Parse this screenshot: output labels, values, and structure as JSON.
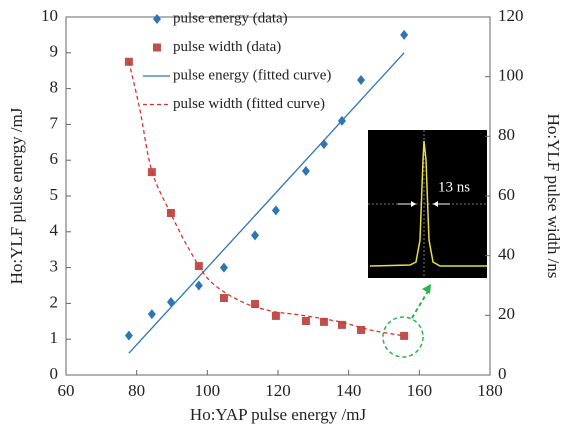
{
  "chart_data": {
    "type": "scatter",
    "xlabel": "Ho:YAP pulse energy /mJ",
    "ylabel": "Ho:YLF pulse energy /mJ",
    "y2label": "Ho:YLF pulse width /ns",
    "xlim": [
      60,
      180
    ],
    "xticks": [
      60,
      80,
      100,
      120,
      140,
      160,
      180
    ],
    "ylim": [
      0,
      10
    ],
    "yticks": [
      0,
      1,
      2,
      3,
      4,
      5,
      6,
      7,
      8,
      9,
      10
    ],
    "y2lim": [
      0,
      120
    ],
    "y2ticks": [
      0,
      20,
      40,
      60,
      80,
      100,
      120
    ],
    "legend": "upper left",
    "annotation": "13 ns",
    "series": [
      {
        "name": "pulse energy (data)",
        "color": "#2e75b6",
        "mode": "markers",
        "marker": "diamond",
        "x": [
          77.8,
          84.3,
          89.7,
          97.6,
          104.7,
          113.5,
          119.4,
          127.9,
          133,
          138.1,
          143.5,
          155.7
        ],
        "values": [
          1.1,
          1.7,
          2.04,
          2.5,
          3.0,
          3.9,
          4.6,
          5.7,
          6.45,
          7.1,
          8.24,
          9.5
        ]
      },
      {
        "name": "pulse width (data)",
        "color": "#c0504d",
        "mode": "markers",
        "marker": "square",
        "axis": "y2",
        "x": [
          77.8,
          84.3,
          89.7,
          97.6,
          104.7,
          113.5,
          119.4,
          127.9,
          133,
          138.1,
          143.5,
          155.7
        ],
        "values": [
          105,
          68,
          54.3,
          36.5,
          25.8,
          23.8,
          19.8,
          18.1,
          17.8,
          16.8,
          15.1,
          13.1
        ]
      },
      {
        "name": "pulse energy (fitted curve)",
        "color": "#2e75b6",
        "mode": "line",
        "dash": false,
        "x": [
          77.8,
          155.7
        ],
        "values": [
          0.61,
          9.0
        ]
      },
      {
        "name": "pulse width (fitted curve)",
        "color": "#d9342b",
        "mode": "line",
        "dash": true,
        "axis": "y2",
        "x": [
          77.8,
          80.9,
          84.3,
          89.7,
          95.1,
          100.8,
          109.3,
          117.8,
          126.3,
          137.6,
          146.1,
          155.7
        ],
        "values": [
          105,
          89,
          68.4,
          54.0,
          41.6,
          31.5,
          24.8,
          21.5,
          20.1,
          17.8,
          15.1,
          13.1
        ]
      }
    ]
  }
}
